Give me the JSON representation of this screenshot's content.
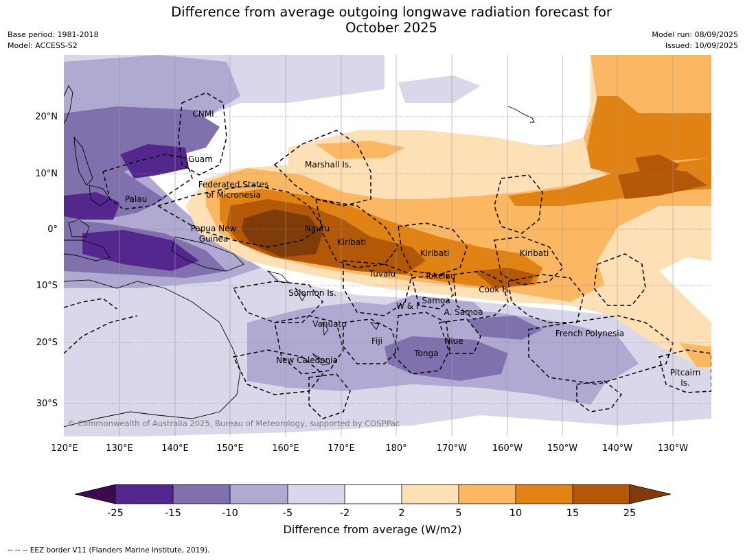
{
  "title": "Difference from average outgoing longwave radiation forecast for October 2025",
  "meta_left": [
    "Base period: 1981-2018",
    "Model: ACCESS-S2"
  ],
  "meta_right": [
    "Model run: 08/09/2025",
    "Issued: 10/09/2025"
  ],
  "lon_ticks": [
    "120°E",
    "130°E",
    "140°E",
    "150°E",
    "160°E",
    "170°E",
    "180°",
    "170°W",
    "160°W",
    "150°W",
    "140°W",
    "130°W"
  ],
  "lat_ticks": [
    "20°N",
    "10°N",
    "0°",
    "10°S",
    "20°S",
    "30°S"
  ],
  "regions": [
    "CNMI",
    "Guam",
    "Marshall Is.",
    "Federated States\nof Micronesia",
    "Palau",
    "Papua New\nGuinea",
    "Nauru",
    "Kiribati",
    "Kiribati",
    "Kiribati",
    "Tuvalu",
    "Tokelau",
    "Cook Is.",
    "Solomon Is.",
    "W & F",
    "Samoa",
    "A. Samoa",
    "Vanuatu",
    "Fiji",
    "Niue",
    "Tonga",
    "French Polynesia",
    "New Caledonia",
    "Pitcairn\nIs."
  ],
  "copyright": "© Commonwealth of Australia 2025, Bureau of Meteorology, supported by COSPPac",
  "colorbar": {
    "label": "Difference from average (W/m2)",
    "ticks": [
      "-25",
      "-15",
      "-10",
      "-5",
      "-2",
      "2",
      "5",
      "10",
      "15",
      "25"
    ],
    "colors": [
      "#3b0a4f",
      "#54278f",
      "#8070ae",
      "#b0a9d1",
      "#d8d8ea",
      "#ffffff",
      "#fee0b6",
      "#fbb762",
      "#e08214",
      "#b35806",
      "#7f3b08"
    ]
  },
  "footnote": "--  --  -- EEZ border V11 (Flanders Marine Institute, 2019)."
}
